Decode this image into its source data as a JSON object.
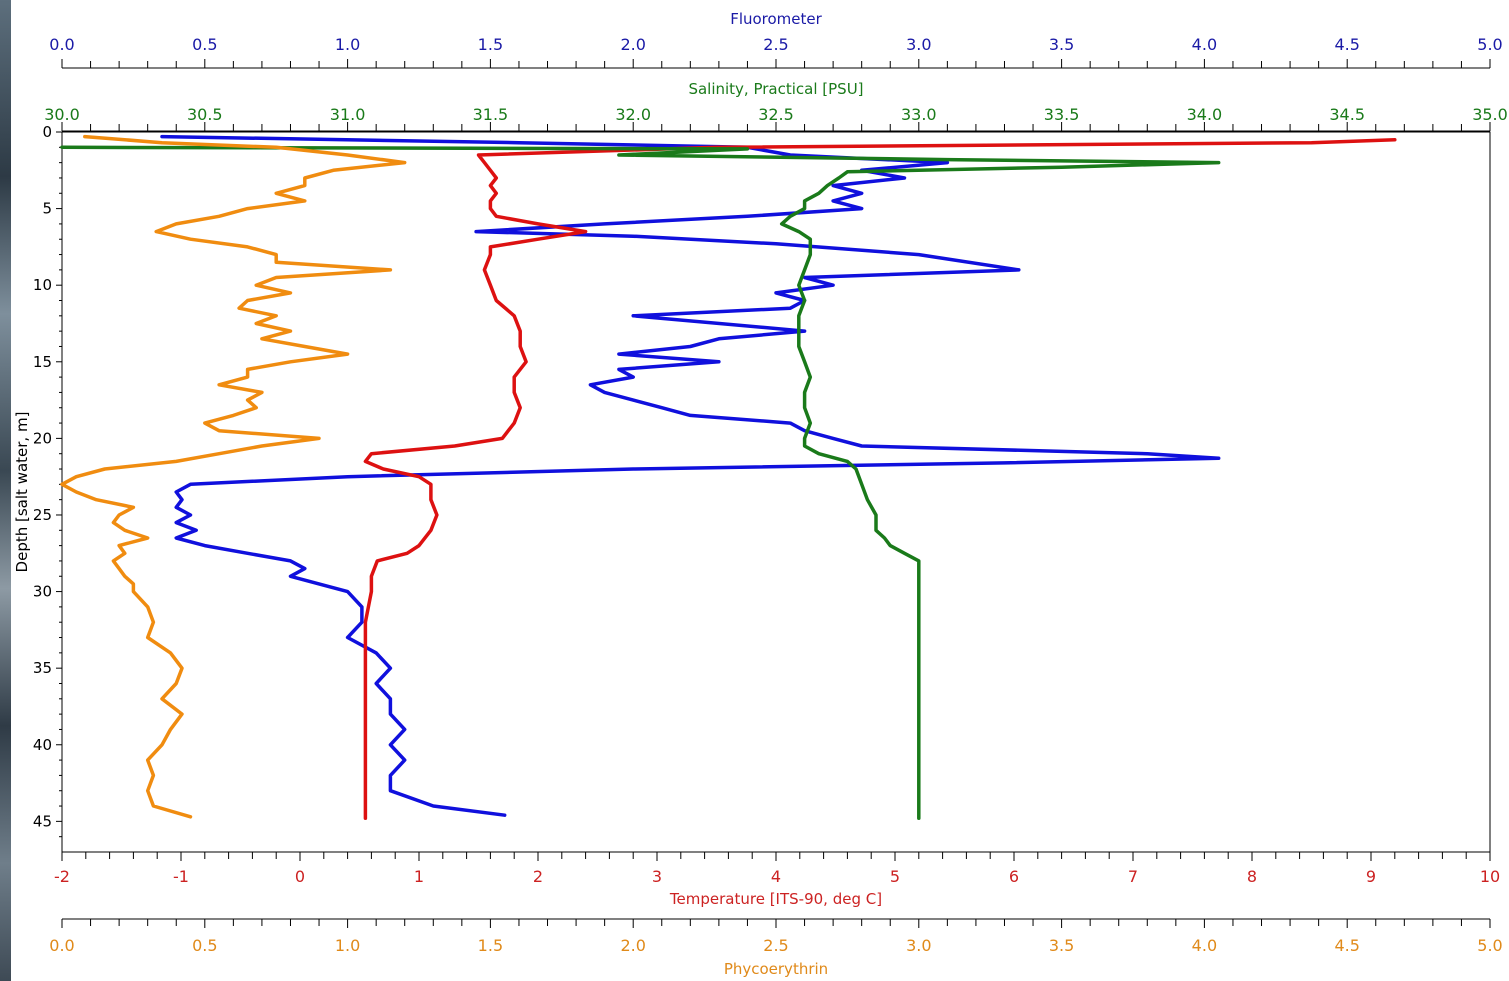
{
  "window": {
    "background": "#ffffff"
  },
  "chart_data": {
    "type": "line",
    "title": "",
    "ylabel": "Depth [salt water, m]",
    "ylim": [
      47,
      0
    ],
    "yticks": [
      "0",
      "5",
      "10",
      "15",
      "20",
      "25",
      "30",
      "35",
      "40",
      "45"
    ],
    "axes": [
      {
        "id": "fluor",
        "label": "Fluorometer",
        "position": "top",
        "color": "#1a1aa6",
        "range": [
          0,
          5
        ],
        "ticks": [
          "0.0",
          "0.5",
          "1.0",
          "1.5",
          "2.0",
          "2.5",
          "3.0",
          "3.5",
          "4.0",
          "4.5",
          "5.0"
        ]
      },
      {
        "id": "sal",
        "label": "Salinity, Practical [PSU]",
        "position": "top",
        "color": "#1a7a1a",
        "range": [
          30,
          35
        ],
        "ticks": [
          "30.0",
          "30.5",
          "31.0",
          "31.5",
          "32.0",
          "32.5",
          "33.0",
          "33.5",
          "34.0",
          "34.5",
          "35.0"
        ]
      },
      {
        "id": "temp",
        "label": "Temperature [ITS-90, deg C]",
        "position": "bottom",
        "color": "#cc2222",
        "range": [
          -2,
          10
        ],
        "ticks": [
          "-2",
          "-1",
          "0",
          "1",
          "2",
          "3",
          "4",
          "5",
          "6",
          "7",
          "8",
          "9",
          "10"
        ]
      },
      {
        "id": "phyco",
        "label": "Phycoerythrin",
        "position": "bottom",
        "color": "#e08a1a",
        "range": [
          0,
          5
        ],
        "ticks": [
          "0.0",
          "0.5",
          "1.0",
          "1.5",
          "2.0",
          "2.5",
          "3.0",
          "3.5",
          "4.0",
          "4.5",
          "5.0"
        ]
      }
    ],
    "series": [
      {
        "axis": "fluor",
        "color": "#1010dd",
        "depth": [
          0.3,
          0.7,
          1.0,
          1.5,
          2.0,
          2.5,
          3.0,
          3.5,
          4.0,
          4.5,
          5.0,
          5.5,
          6.0,
          6.5,
          6.8,
          7.3,
          8.0,
          9.0,
          9.5,
          10.0,
          10.5,
          11.0,
          11.5,
          12.0,
          13.0,
          13.5,
          14.0,
          14.5,
          15.0,
          15.5,
          16.0,
          16.5,
          17.0,
          17.5,
          18.0,
          18.5,
          19.0,
          19.5,
          20.0,
          20.5,
          21.0,
          21.3,
          21.6,
          22.0,
          22.5,
          23.0,
          23.5,
          24.0,
          24.5,
          25.0,
          25.5,
          26.0,
          26.5,
          27.0,
          27.5,
          28.0,
          28.5,
          29.0,
          29.5,
          30.0,
          31.0,
          32.0,
          33.0,
          34.0,
          35.0,
          36.0,
          37.0,
          38.0,
          39.0,
          40.0,
          41.0,
          42.0,
          43.0,
          44.0,
          44.6
        ],
        "values": [
          0.35,
          1.6,
          2.4,
          2.55,
          3.1,
          2.8,
          2.95,
          2.7,
          2.8,
          2.7,
          2.8,
          2.4,
          1.9,
          1.45,
          2.0,
          2.5,
          3.0,
          3.35,
          2.6,
          2.7,
          2.5,
          2.6,
          2.55,
          2.0,
          2.6,
          2.3,
          2.2,
          1.95,
          2.3,
          1.95,
          2.0,
          1.85,
          1.9,
          2.0,
          2.1,
          2.2,
          2.55,
          2.6,
          2.7,
          2.8,
          3.8,
          4.05,
          3.3,
          2.0,
          1.0,
          0.45,
          0.4,
          0.42,
          0.4,
          0.45,
          0.4,
          0.47,
          0.4,
          0.5,
          0.65,
          0.8,
          0.85,
          0.8,
          0.9,
          1.0,
          1.05,
          1.05,
          1.0,
          1.1,
          1.15,
          1.1,
          1.15,
          1.15,
          1.2,
          1.15,
          1.2,
          1.15,
          1.15,
          1.3,
          1.55
        ]
      },
      {
        "axis": "temp",
        "color": "#dd1111",
        "depth": [
          0.5,
          0.7,
          1.0,
          1.5,
          2.0,
          2.5,
          3.0,
          3.5,
          4.0,
          4.5,
          5.0,
          5.5,
          6.0,
          6.5,
          7.0,
          7.5,
          8.0,
          9.0,
          10.0,
          11.0,
          12.0,
          13.0,
          14.0,
          15.0,
          16.0,
          17.0,
          18.0,
          19.0,
          20.0,
          20.5,
          21.0,
          21.5,
          22.0,
          22.5,
          23.0,
          24.0,
          25.0,
          26.0,
          27.0,
          27.5,
          28.0,
          29.0,
          30.0,
          32.0,
          34.0,
          36.0,
          38.0,
          40.0,
          42.0,
          44.0,
          44.8
        ],
        "values": [
          9.2,
          8.5,
          3.5,
          1.5,
          1.55,
          1.6,
          1.65,
          1.6,
          1.65,
          1.6,
          1.6,
          1.65,
          2.0,
          2.4,
          2.0,
          1.6,
          1.6,
          1.55,
          1.6,
          1.65,
          1.8,
          1.85,
          1.85,
          1.9,
          1.8,
          1.8,
          1.85,
          1.8,
          1.7,
          1.3,
          0.6,
          0.55,
          0.7,
          1.0,
          1.1,
          1.1,
          1.15,
          1.1,
          1.0,
          0.9,
          0.65,
          0.6,
          0.6,
          0.55,
          0.55,
          0.55,
          0.55,
          0.55,
          0.55,
          0.55,
          0.55
        ]
      },
      {
        "axis": "sal",
        "color": "#1a7a1a",
        "depth": [
          1.0,
          1.1,
          1.5,
          1.8,
          2.0,
          2.3,
          2.6,
          3.0,
          3.5,
          4.0,
          4.5,
          5.0,
          5.5,
          6.0,
          6.5,
          7.0,
          8.0,
          9.0,
          10.0,
          11.0,
          12.0,
          13.0,
          14.0,
          15.0,
          16.0,
          17.0,
          18.0,
          19.0,
          20.0,
          20.5,
          21.0,
          21.5,
          22.0,
          23.0,
          24.0,
          25.0,
          26.0,
          26.5,
          27.0,
          27.5,
          28.0,
          30.0,
          33.0,
          36.0,
          40.0,
          44.8
        ],
        "values": [
          30.0,
          32.4,
          31.95,
          33.1,
          34.05,
          33.5,
          32.75,
          32.72,
          32.68,
          32.65,
          32.6,
          32.6,
          32.55,
          32.52,
          32.58,
          32.62,
          32.62,
          32.6,
          32.58,
          32.6,
          32.58,
          32.58,
          32.58,
          32.6,
          32.62,
          32.6,
          32.6,
          32.62,
          32.6,
          32.6,
          32.65,
          32.75,
          32.78,
          32.8,
          32.82,
          32.85,
          32.85,
          32.88,
          32.9,
          32.95,
          33.0,
          33.0,
          33.0,
          33.0,
          33.0,
          33.0
        ]
      },
      {
        "axis": "phyco",
        "color": "#f08c10",
        "depth": [
          0.3,
          0.7,
          1.0,
          1.5,
          2.0,
          2.5,
          3.0,
          3.5,
          4.0,
          4.5,
          5.0,
          5.5,
          6.0,
          6.5,
          7.0,
          7.5,
          8.0,
          8.5,
          9.0,
          9.5,
          10.0,
          10.5,
          11.0,
          11.5,
          12.0,
          12.5,
          13.0,
          13.5,
          14.0,
          14.5,
          15.0,
          15.5,
          16.0,
          16.5,
          17.0,
          17.5,
          18.0,
          18.5,
          19.0,
          19.5,
          20.0,
          20.5,
          21.0,
          21.5,
          22.0,
          22.5,
          23.0,
          23.5,
          24.0,
          24.5,
          25.0,
          25.5,
          26.0,
          26.5,
          27.0,
          27.5,
          28.0,
          28.5,
          29.0,
          29.5,
          30.0,
          31.0,
          32.0,
          33.0,
          34.0,
          35.0,
          36.0,
          37.0,
          38.0,
          39.0,
          40.0,
          41.0,
          42.0,
          43.0,
          44.0,
          44.7
        ],
        "values": [
          0.08,
          0.35,
          0.75,
          1.0,
          1.2,
          0.95,
          0.85,
          0.85,
          0.75,
          0.85,
          0.65,
          0.55,
          0.4,
          0.33,
          0.45,
          0.65,
          0.75,
          0.75,
          1.15,
          0.75,
          0.68,
          0.8,
          0.65,
          0.62,
          0.75,
          0.68,
          0.8,
          0.7,
          0.85,
          1.0,
          0.8,
          0.65,
          0.65,
          0.55,
          0.7,
          0.65,
          0.68,
          0.6,
          0.5,
          0.55,
          0.9,
          0.7,
          0.55,
          0.4,
          0.15,
          0.05,
          0.0,
          0.05,
          0.12,
          0.25,
          0.2,
          0.18,
          0.22,
          0.3,
          0.2,
          0.22,
          0.18,
          0.2,
          0.22,
          0.25,
          0.25,
          0.3,
          0.32,
          0.3,
          0.38,
          0.42,
          0.4,
          0.35,
          0.42,
          0.38,
          0.35,
          0.3,
          0.32,
          0.3,
          0.32,
          0.45
        ]
      }
    ]
  }
}
